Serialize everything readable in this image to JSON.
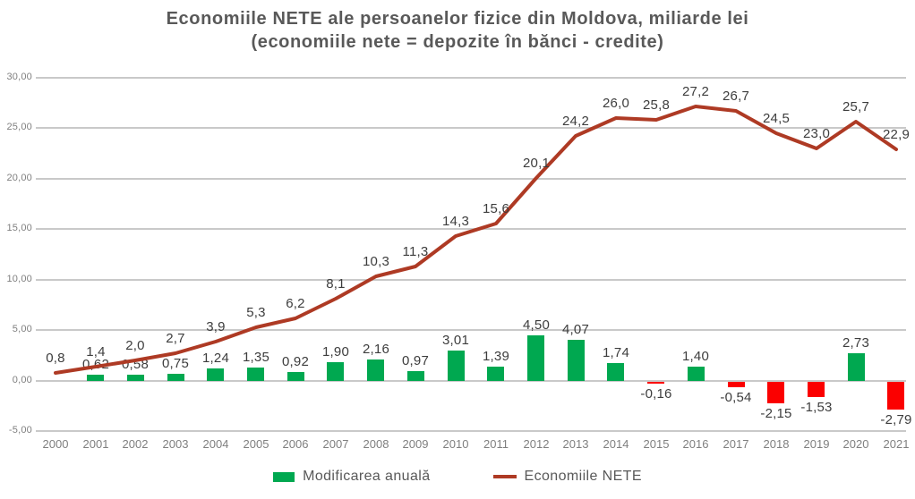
{
  "title": {
    "line1": "Economiile NETE ale persoanelor fizice din Moldova, miliarde lei",
    "line2": "(economiile nete = depozite în bănci - credite)"
  },
  "legend": {
    "bar_label": "Modificarea anuală",
    "line_label": "Economiile NETE"
  },
  "colors": {
    "bar_positive": "#00A850",
    "bar_negative": "#FB0000",
    "line": "#AE3A24",
    "grid": "#C9C9C9",
    "title_text": "#595959",
    "axis_text": "#7F7F7F",
    "label_text": "#3D3D3D"
  },
  "chart_data": {
    "type": "bar",
    "subtype": "combo-bar-line",
    "title": "Economiile NETE ale persoanelor fizice din Moldova, miliarde lei (economiile nete = depozite în bănci - credite)",
    "xlabel": "",
    "ylabel": "",
    "grid": true,
    "legend_position": "bottom",
    "categories": [
      "2000",
      "2001",
      "2002",
      "2003",
      "2004",
      "2005",
      "2006",
      "2007",
      "2008",
      "2009",
      "2010",
      "2011",
      "2012",
      "2013",
      "2014",
      "2015",
      "2016",
      "2017",
      "2018",
      "2019",
      "2020",
      "2021"
    ],
    "y_axis": {
      "min": -5,
      "max": 30,
      "step": 5,
      "tick_labels": [
        "30,00",
        "25,00",
        "20,00",
        "15,00",
        "10,00",
        "5,00",
        "0,00",
        "-5,00"
      ]
    },
    "series": [
      {
        "name": "Modificarea anuală",
        "type": "bar",
        "values": [
          null,
          0.62,
          0.58,
          0.75,
          1.24,
          1.35,
          0.92,
          1.9,
          2.16,
          0.97,
          3.01,
          1.39,
          4.5,
          4.07,
          1.74,
          -0.16,
          1.4,
          -0.54,
          -2.15,
          -1.53,
          2.73,
          -2.79
        ],
        "labels": [
          null,
          "0,62",
          "0,58",
          "0,75",
          "1,24",
          "1,35",
          "0,92",
          "1,90",
          "2,16",
          "0,97",
          "3,01",
          "1,39",
          "4,50",
          "4,07",
          "1,74",
          "-0,16",
          "1,40",
          "-0,54",
          "-2,15",
          "-1,53",
          "2,73",
          "-2,79"
        ]
      },
      {
        "name": "Economiile NETE",
        "type": "line",
        "values": [
          0.8,
          1.4,
          2.0,
          2.7,
          3.9,
          5.3,
          6.2,
          8.1,
          10.3,
          11.3,
          14.3,
          15.6,
          20.1,
          24.2,
          26.0,
          25.8,
          27.2,
          26.7,
          24.5,
          23.0,
          25.7,
          22.9
        ],
        "labels": [
          "0,8",
          "1,4",
          "2,0",
          "2,7",
          "3,9",
          "5,3",
          "6,2",
          "8,1",
          "10,3",
          "11,3",
          "14,3",
          "15,6",
          "20,1",
          "24,2",
          "26,0",
          "25,8",
          "27,2",
          "26,7",
          "24,5",
          "23,0",
          "25,7",
          "22,9"
        ]
      }
    ]
  }
}
